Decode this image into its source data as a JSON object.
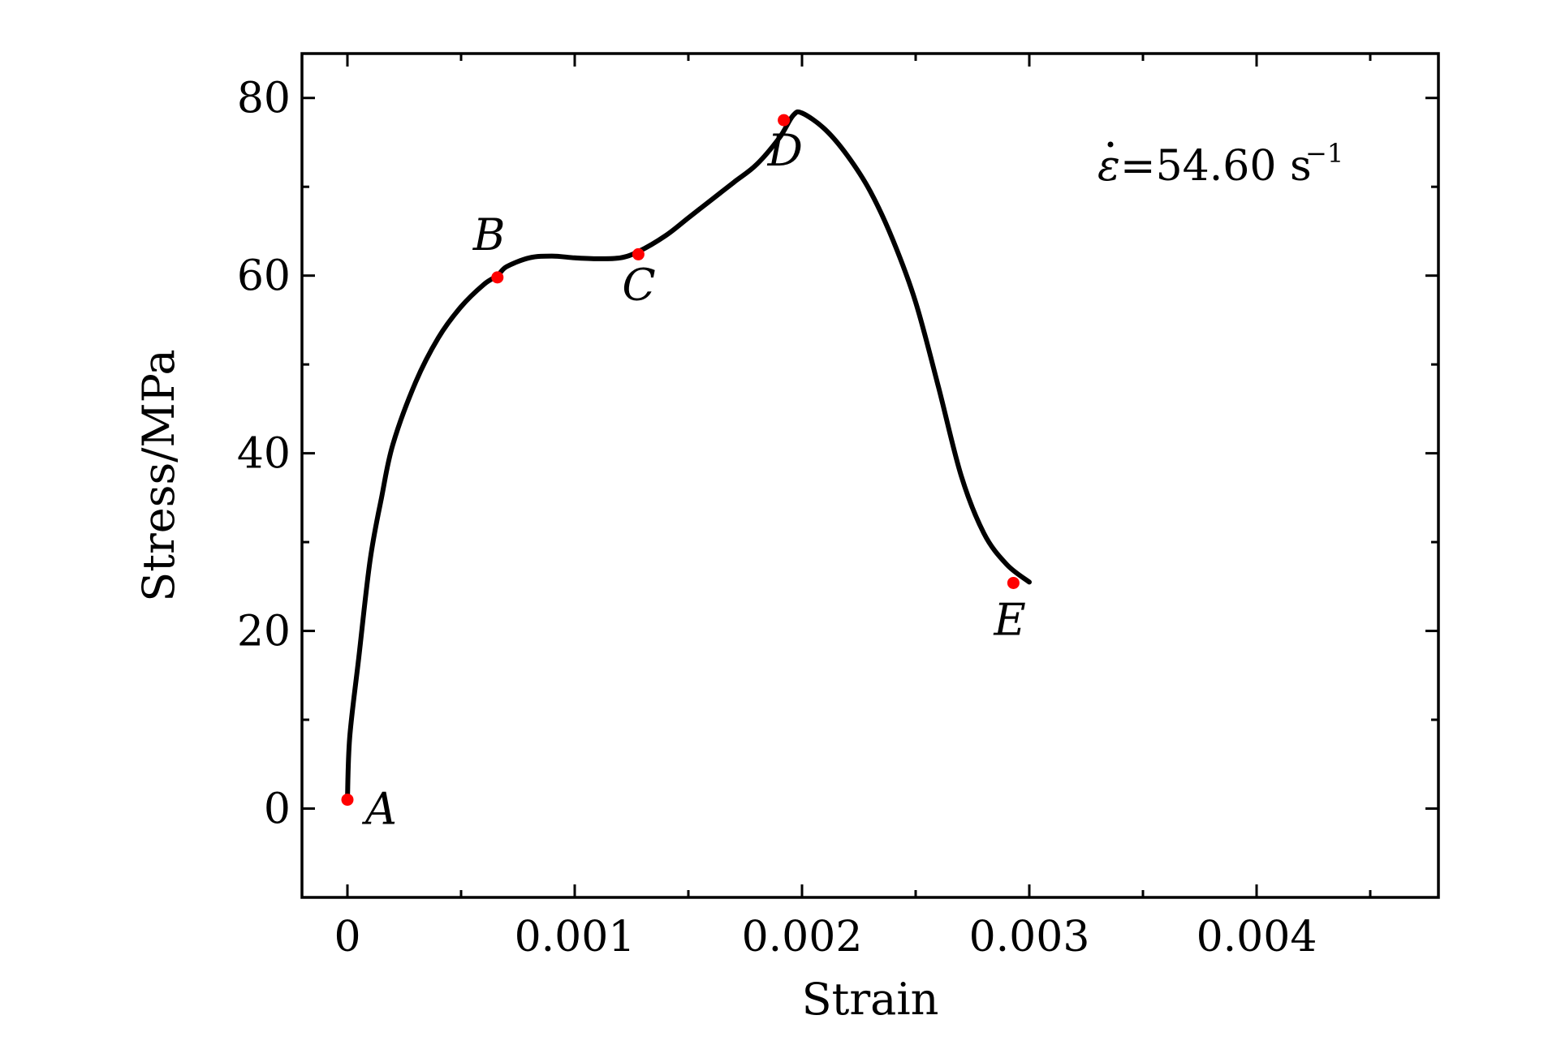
{
  "chart_data": {
    "type": "line",
    "xlabel": "Strain",
    "ylabel": "Stress/MPa",
    "xlim": [
      -0.0002,
      0.0048
    ],
    "ylim": [
      -10,
      85
    ],
    "x_ticks": [
      0,
      0.001,
      0.002,
      0.003,
      0.004
    ],
    "x_tick_labels": [
      "0",
      "0.001",
      "0.002",
      "0.003",
      "0.004"
    ],
    "x_minor_ticks": [
      0.0005,
      0.0015,
      0.0025,
      0.0035,
      0.0045
    ],
    "y_ticks": [
      0,
      20,
      40,
      60,
      80
    ],
    "y_tick_labels": [
      "0",
      "20",
      "40",
      "60",
      "80"
    ],
    "y_minor_ticks": [
      10,
      30,
      50,
      70
    ],
    "grid": false,
    "annotation": {
      "base": "=54.60 s",
      "superscript": "−1"
    },
    "series": [
      {
        "color": "#000000",
        "x": [
          0.0,
          1e-05,
          5e-05,
          0.0001,
          0.00015,
          0.0002,
          0.0003,
          0.0004,
          0.0005,
          0.0006,
          0.00066,
          0.0007,
          0.0008,
          0.0009,
          0.001,
          0.0011,
          0.0012,
          0.00128,
          0.0014,
          0.0015,
          0.0016,
          0.0017,
          0.0018,
          0.0019,
          0.00196,
          0.002,
          0.0021,
          0.0022,
          0.0023,
          0.0024,
          0.0025,
          0.0026,
          0.0027,
          0.0028,
          0.0029,
          0.003
        ],
        "y": [
          1,
          8,
          17,
          28,
          35,
          41,
          48,
          53,
          56.5,
          59,
          60,
          61,
          62,
          62.2,
          62,
          61.9,
          62,
          62.7,
          64.5,
          66.5,
          68.5,
          70.5,
          72.5,
          75.5,
          78,
          78.3,
          76.5,
          73.5,
          69.5,
          64,
          57,
          47.5,
          37.5,
          31,
          27.5,
          25.5
        ]
      }
    ],
    "points": [
      {
        "label": "A",
        "x": 0.0,
        "y": 1.0,
        "color": "#ff0000"
      },
      {
        "label": "B",
        "x": 0.00066,
        "y": 59.8,
        "color": "#ff0000"
      },
      {
        "label": "C",
        "x": 0.00128,
        "y": 62.4,
        "color": "#ff0000"
      },
      {
        "label": "D",
        "x": 0.00192,
        "y": 77.5,
        "color": "#ff0000"
      },
      {
        "label": "E",
        "x": 0.00293,
        "y": 25.4,
        "color": "#ff0000"
      }
    ]
  }
}
